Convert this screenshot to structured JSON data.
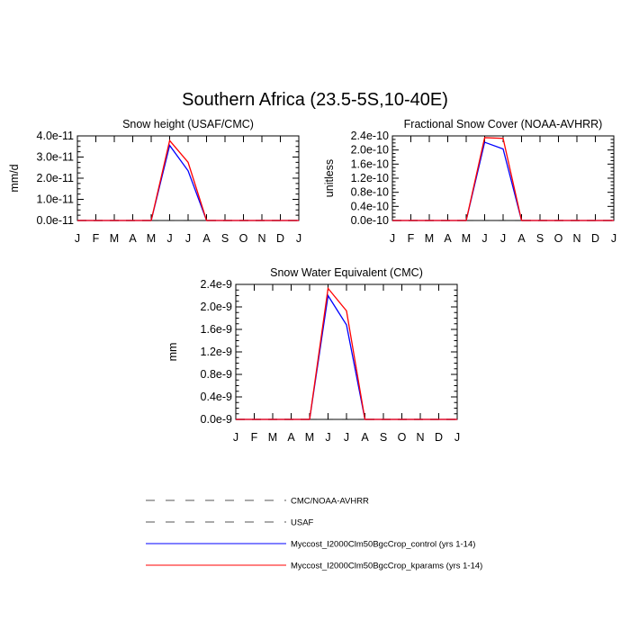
{
  "page": {
    "title": "Southern Africa (23.5-5S,10-40E)"
  },
  "months": [
    "J",
    "F",
    "M",
    "A",
    "M",
    "J",
    "J",
    "A",
    "S",
    "O",
    "N",
    "D",
    "J"
  ],
  "series_styles": {
    "obs1": {
      "color": "#555555",
      "dash": true
    },
    "obs2": {
      "color": "#555555",
      "dash": true
    },
    "control": {
      "color": "#0000ff",
      "dash": false
    },
    "kparams": {
      "color": "#ff0000",
      "dash": false
    }
  },
  "chart_data": [
    {
      "type": "line",
      "title": "Snow height (USAF/CMC)",
      "ylabel": "mm/d",
      "ylim": [
        0,
        4e-11
      ],
      "yticks": [
        0,
        1e-11,
        2e-11,
        3e-11,
        4e-11
      ],
      "ytick_labels": [
        "0.0e-11",
        "1.0e-11",
        "2.0e-11",
        "3.0e-11",
        "4.0e-11"
      ],
      "series": [
        {
          "key": "obs1",
          "values": [
            0,
            0,
            0,
            0,
            0,
            0,
            0,
            0,
            0,
            0,
            0,
            0,
            0
          ]
        },
        {
          "key": "obs2",
          "values": [
            0,
            0,
            0,
            0,
            0,
            0,
            0,
            0,
            0,
            0,
            0,
            0,
            0
          ]
        },
        {
          "key": "control",
          "values": [
            0,
            0,
            0,
            0,
            0,
            3.55e-11,
            2.35e-11,
            0,
            0,
            0,
            0,
            0,
            0
          ]
        },
        {
          "key": "kparams",
          "values": [
            0,
            0,
            0,
            0,
            0,
            3.78e-11,
            2.75e-11,
            0,
            0,
            0,
            0,
            0,
            0
          ]
        }
      ]
    },
    {
      "type": "line",
      "title": "Fractional Snow Cover (NOAA-AVHRR)",
      "ylabel": "unitless",
      "ylim": [
        0,
        2.4e-10
      ],
      "yticks": [
        0,
        4e-11,
        8e-11,
        1.2e-10,
        1.6e-10,
        2e-10,
        2.4e-10
      ],
      "ytick_labels": [
        "0.0e-10",
        "0.4e-10",
        "0.8e-10",
        "1.2e-10",
        "1.6e-10",
        "2.0e-10",
        "2.4e-10"
      ],
      "series": [
        {
          "key": "obs1",
          "values": [
            0,
            0,
            0,
            0,
            0,
            0,
            0,
            0,
            0,
            0,
            0,
            0,
            0
          ]
        },
        {
          "key": "obs2",
          "values": [
            0,
            0,
            0,
            0,
            0,
            0,
            0,
            0,
            0,
            0,
            0,
            0,
            0
          ]
        },
        {
          "key": "control",
          "values": [
            0,
            0,
            0,
            0,
            0,
            2.22e-10,
            2.03e-10,
            0,
            0,
            0,
            0,
            0,
            0
          ]
        },
        {
          "key": "kparams",
          "values": [
            0,
            0,
            0,
            0,
            0,
            2.35e-10,
            2.33e-10,
            0,
            0,
            0,
            0,
            0,
            0
          ]
        }
      ]
    },
    {
      "type": "line",
      "title": "Snow Water Equivalent (CMC)",
      "ylabel": "mm",
      "ylim": [
        0,
        2.4e-09
      ],
      "yticks": [
        0,
        4e-10,
        8e-10,
        1.2e-09,
        1.6e-09,
        2e-09,
        2.4e-09
      ],
      "ytick_labels": [
        "0.0e-9",
        "0.4e-9",
        "0.8e-9",
        "1.2e-9",
        "1.6e-9",
        "2.0e-9",
        "2.4e-9"
      ],
      "series": [
        {
          "key": "obs1",
          "values": [
            0,
            0,
            0,
            0,
            0,
            0,
            0,
            0,
            0,
            0,
            0,
            0,
            0
          ]
        },
        {
          "key": "obs2",
          "values": [
            0,
            0,
            0,
            0,
            0,
            0,
            0,
            0,
            0,
            0,
            0,
            0,
            0
          ]
        },
        {
          "key": "control",
          "values": [
            0,
            0,
            0,
            0,
            0,
            2.2e-09,
            1.68e-09,
            0,
            0,
            0,
            0,
            0,
            0
          ]
        },
        {
          "key": "kparams",
          "values": [
            0,
            0,
            0,
            0,
            0,
            2.33e-09,
            1.93e-09,
            0,
            0,
            0,
            0,
            0,
            0
          ]
        }
      ]
    }
  ],
  "legend": [
    {
      "key": "obs1",
      "label": "CMC/NOAA-AVHRR"
    },
    {
      "key": "obs2",
      "label": "USAF"
    },
    {
      "key": "control",
      "label": "Myccost_I2000Clm50BgcCrop_control (yrs 1-14)"
    },
    {
      "key": "kparams",
      "label": "Myccost_I2000Clm50BgcCrop_kparams (yrs 1-14)"
    }
  ]
}
